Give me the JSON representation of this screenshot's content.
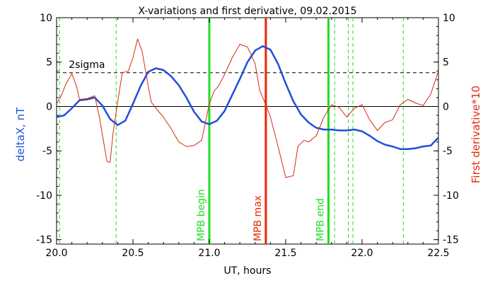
{
  "chart_data": {
    "type": "line",
    "title": "X-variations and first derivative, 09.02.2015",
    "xlabel": "UT, hours",
    "ylabel_left": "deltaX, nT",
    "ylabel_right": "First derivative*10",
    "xlim": [
      20.0,
      22.5
    ],
    "ylim_left": [
      -15.5,
      10
    ],
    "ylim_right": [
      -15.5,
      10
    ],
    "x_ticks": [
      20.0,
      20.5,
      21.0,
      21.5,
      22.0,
      22.5
    ],
    "x_tick_labels": [
      "20.0",
      "20.5",
      "21.0",
      "21.5",
      "22.0",
      "22.5"
    ],
    "y_ticks": [
      10,
      5,
      0,
      -5,
      -10,
      -15
    ],
    "y_tick_labels": [
      "10",
      "5",
      "0",
      "-5",
      "-10",
      "-15"
    ],
    "grid": false,
    "colors": {
      "deltaX": "#1f4fd8",
      "derivative": "#d42a10",
      "marker_green": "#22dd22",
      "marker_red": "#ee2200",
      "left_label": "#1f4fd8",
      "right_label": "#e02a0a"
    },
    "series": [
      {
        "key": "deltaX",
        "axis": "left",
        "x": [
          20.0,
          20.05,
          20.1,
          20.15,
          20.2,
          20.25,
          20.3,
          20.35,
          20.4,
          20.45,
          20.5,
          20.55,
          20.6,
          20.65,
          20.7,
          20.75,
          20.8,
          20.85,
          20.9,
          20.95,
          21.0,
          21.05,
          21.1,
          21.15,
          21.2,
          21.25,
          21.3,
          21.35,
          21.4,
          21.45,
          21.5,
          21.55,
          21.6,
          21.65,
          21.7,
          21.75,
          21.8,
          21.85,
          21.9,
          21.95,
          22.0,
          22.05,
          22.1,
          22.15,
          22.2,
          22.25,
          22.3,
          22.35,
          22.4,
          22.45,
          22.5
        ],
        "values": [
          -1.2,
          -1.0,
          -0.2,
          0.7,
          0.8,
          1.0,
          0.1,
          -1.4,
          -2.1,
          -1.6,
          0.3,
          2.3,
          3.9,
          4.3,
          4.1,
          3.4,
          2.4,
          1.0,
          -0.6,
          -1.7,
          -2.0,
          -1.6,
          -0.5,
          1.3,
          3.1,
          5.0,
          6.3,
          6.8,
          6.4,
          4.8,
          2.6,
          0.6,
          -0.9,
          -1.8,
          -2.4,
          -2.6,
          -2.6,
          -2.7,
          -2.7,
          -2.6,
          -2.8,
          -3.3,
          -3.9,
          -4.3,
          -4.5,
          -4.8,
          -4.8,
          -4.7,
          -4.5,
          -4.4,
          -3.5
        ]
      },
      {
        "key": "derivative",
        "axis": "right",
        "x": [
          20.0,
          20.03,
          20.06,
          20.1,
          20.13,
          20.15,
          20.2,
          20.25,
          20.28,
          20.31,
          20.33,
          20.35,
          20.37,
          20.4,
          20.43,
          20.47,
          20.5,
          20.53,
          20.56,
          20.6,
          20.62,
          20.65,
          20.7,
          20.75,
          20.8,
          20.85,
          20.9,
          20.95,
          21.0,
          21.03,
          21.06,
          21.1,
          21.15,
          21.2,
          21.25,
          21.3,
          21.33,
          21.37,
          21.4,
          21.45,
          21.5,
          21.55,
          21.58,
          21.62,
          21.65,
          21.7,
          21.75,
          21.8,
          21.85,
          21.9,
          21.95,
          22.0,
          22.05,
          22.1,
          22.15,
          22.2,
          22.25,
          22.3,
          22.35,
          22.4,
          22.45,
          22.5
        ],
        "values": [
          0.3,
          1.2,
          2.5,
          3.7,
          2.3,
          0.8,
          0.9,
          1.2,
          -1.2,
          -4.2,
          -6.2,
          -6.3,
          -3.0,
          0.5,
          3.8,
          4.0,
          5.5,
          7.6,
          6.2,
          2.3,
          0.5,
          -0.2,
          -1.2,
          -2.5,
          -4.0,
          -4.5,
          -4.4,
          -3.8,
          0.3,
          1.7,
          2.3,
          3.6,
          5.5,
          7.0,
          6.7,
          4.8,
          1.8,
          0.2,
          -1.2,
          -4.5,
          -8.0,
          -7.8,
          -4.5,
          -3.8,
          -4.0,
          -3.3,
          -1.2,
          0.2,
          -0.1,
          -1.2,
          -0.2,
          0.2,
          -1.5,
          -2.7,
          -1.8,
          -1.5,
          0.2,
          0.8,
          0.4,
          0.1,
          1.4,
          4.0
        ]
      }
    ],
    "threshold": {
      "label": "2sigma",
      "value": 3.8
    },
    "dashed_markers": [
      20.02,
      20.39,
      21.82,
      21.91,
      21.94,
      22.27
    ],
    "markers": [
      {
        "x": 21.0,
        "label": "MPB begin",
        "color": "#22dd22"
      },
      {
        "x": 21.37,
        "label": "MPB max",
        "color": "#ee2200"
      },
      {
        "x": 21.78,
        "label": "MPB end",
        "color": "#22dd22"
      }
    ]
  }
}
